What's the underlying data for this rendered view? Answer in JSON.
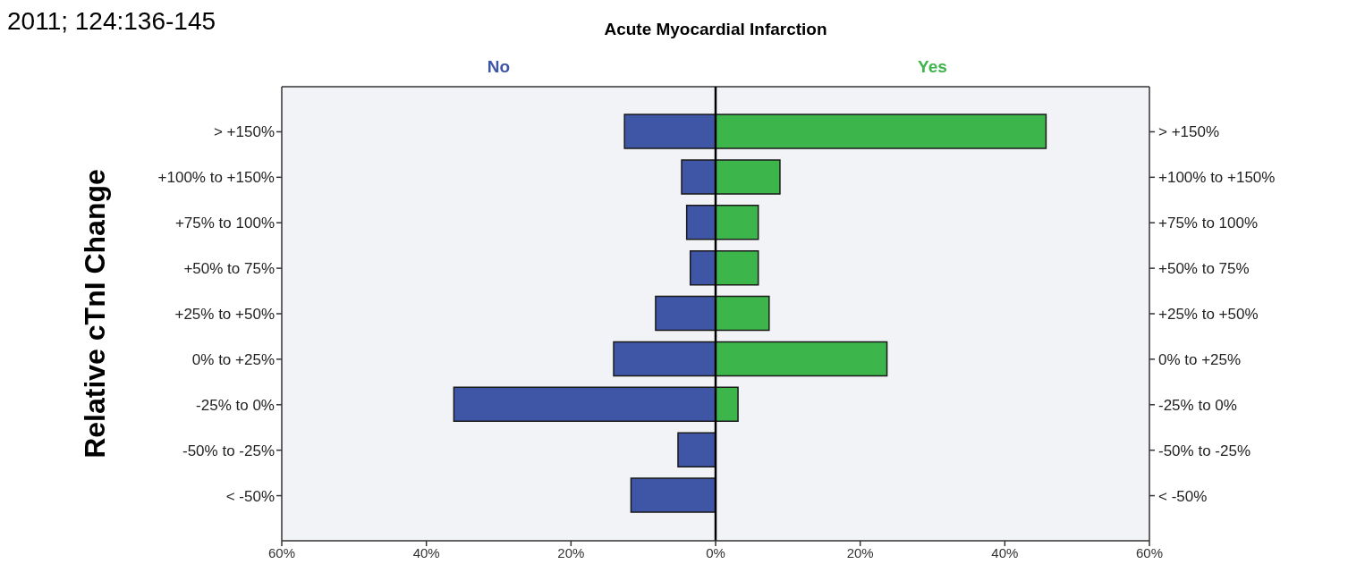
{
  "chart_data": {
    "type": "bar",
    "orientation": "horizontal",
    "stacked": true,
    "title": "Acute Myocardial Infarction",
    "ylabel": "Relative cTnI Change",
    "annotations": [
      "2011; 124:136-145"
    ],
    "categories": [
      "> +150%",
      "+100% to +150%",
      "+75% to 100%",
      "+50% to 75%",
      "+25% to +50%",
      "0% to +25%",
      "-25% to 0%",
      "-50% to -25%",
      "< -50%"
    ],
    "series": [
      {
        "name": "No",
        "color": "#3f55a6",
        "values": [
          -12.6,
          -4.7,
          -4.0,
          -3.5,
          -8.3,
          -14.1,
          -36.2,
          -5.2,
          -11.7
        ]
      },
      {
        "name": "Yes",
        "color": "#3cb54a",
        "values": [
          45.7,
          8.9,
          5.9,
          5.9,
          7.4,
          23.7,
          3.1,
          0,
          0
        ]
      }
    ],
    "xlim": [
      -60,
      60
    ],
    "xticks": [
      {
        "value": -60,
        "label": "60%"
      },
      {
        "value": -40,
        "label": "40%"
      },
      {
        "value": -20,
        "label": "20%"
      },
      {
        "value": 0,
        "label": "0%"
      },
      {
        "value": 20,
        "label": "20%"
      },
      {
        "value": 40,
        "label": "40%"
      },
      {
        "value": 60,
        "label": "60%"
      }
    ],
    "ref_lines": [
      {
        "axis": "x",
        "value": 0,
        "color": "#000000"
      }
    ]
  }
}
